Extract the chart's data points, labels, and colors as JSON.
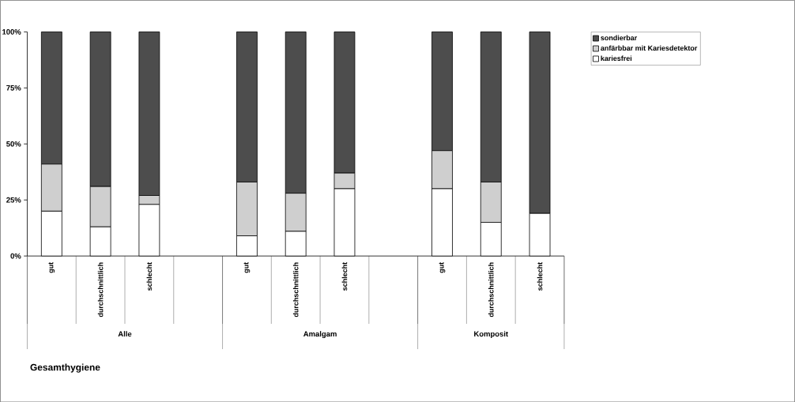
{
  "chart_data": {
    "type": "bar",
    "stacked": true,
    "xlabel": "Gesamthygiene",
    "categories": [
      "gut",
      "durchschnittlich",
      "schlecht",
      null,
      "gut",
      "durchschnittlich",
      "schlecht",
      null,
      "gut",
      "durchschnittlich",
      "schlecht"
    ],
    "series": [
      {
        "name": "kariesfrei",
        "color": "#ffffff",
        "values": [
          20,
          13,
          23,
          null,
          9,
          11,
          30,
          null,
          30,
          15,
          19
        ]
      },
      {
        "name": "anfärbbar mit Kariesdetektor",
        "color": "#cfcfcf",
        "values": [
          21,
          18,
          4,
          null,
          24,
          17,
          7,
          null,
          17,
          18,
          0
        ]
      },
      {
        "name": "sondierbar",
        "color": "#4d4d4d",
        "values": [
          59,
          69,
          73,
          null,
          67,
          72,
          63,
          null,
          53,
          67,
          81
        ]
      }
    ],
    "annotations": [
      "Alle",
      "Amalgam",
      "Komposit"
    ],
    "ylim": [
      0,
      100
    ],
    "yticks": [
      {
        "value": 0,
        "label": "0%"
      },
      {
        "value": 25,
        "label": "25%"
      },
      {
        "value": 50,
        "label": "50%"
      },
      {
        "value": 75,
        "label": "75%"
      },
      {
        "value": 100,
        "label": "100%"
      }
    ],
    "grid": false,
    "legend": "top right"
  }
}
